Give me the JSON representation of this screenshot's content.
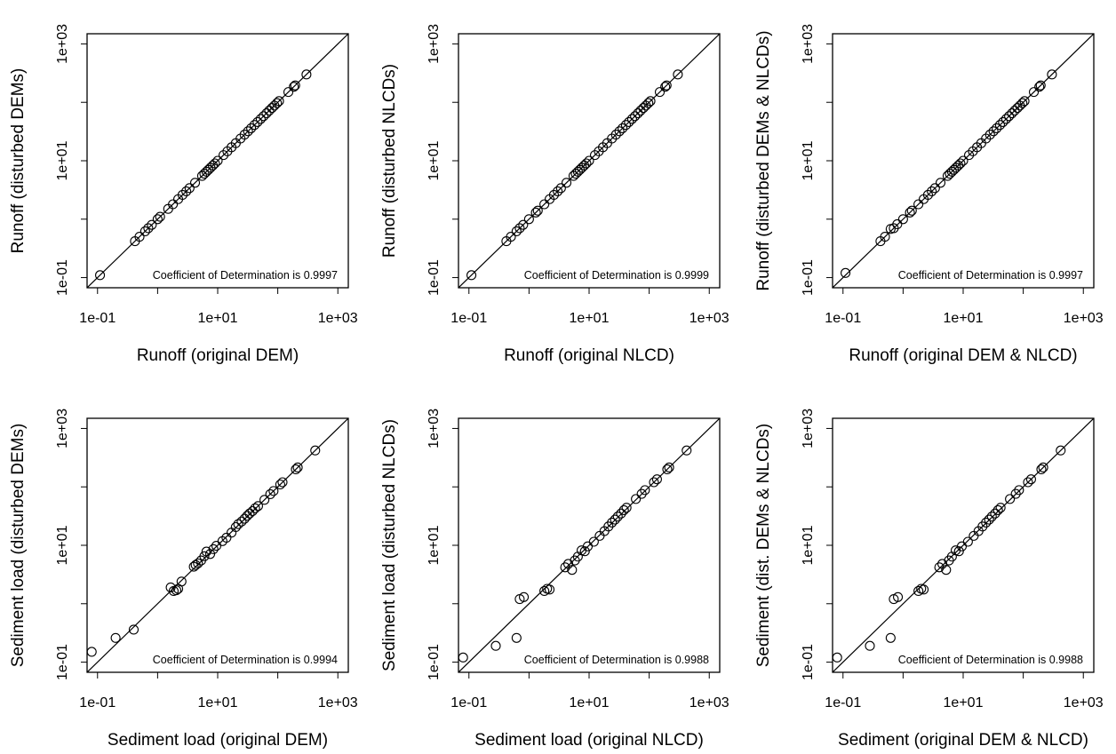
{
  "chart_data": [
    {
      "type": "scatter",
      "xlabel": "Runoff (original DEM)",
      "ylabel": "Runoff (disturbed DEMs)",
      "annotation": "Coefficient of Determination is 0.9997",
      "x_scale": "log",
      "y_scale": "log",
      "xlim": [
        0.1,
        1000
      ],
      "ylim": [
        0.1,
        1000
      ],
      "x_ticks": [
        "1e-01",
        "1e+01",
        "1e+03"
      ],
      "y_ticks": [
        "1e-01",
        "1e+01",
        "1e+03"
      ],
      "reference_line": "y = x",
      "points": [
        [
          0.11,
          0.11
        ],
        [
          0.42,
          0.42
        ],
        [
          0.5,
          0.5
        ],
        [
          0.62,
          0.62
        ],
        [
          0.7,
          0.7
        ],
        [
          0.8,
          0.8
        ],
        [
          1.0,
          1.0
        ],
        [
          1.1,
          1.1
        ],
        [
          1.5,
          1.5
        ],
        [
          1.8,
          1.8
        ],
        [
          2.2,
          2.2
        ],
        [
          2.6,
          2.6
        ],
        [
          3.0,
          3.0
        ],
        [
          3.4,
          3.4
        ],
        [
          4.2,
          4.2
        ],
        [
          5.5,
          5.5
        ],
        [
          6.0,
          6.0
        ],
        [
          6.5,
          6.5
        ],
        [
          7.0,
          7.0
        ],
        [
          7.6,
          7.6
        ],
        [
          8.3,
          8.3
        ],
        [
          9.0,
          9.0
        ],
        [
          10.0,
          10.0
        ],
        [
          12.5,
          12.5
        ],
        [
          14.5,
          14.5
        ],
        [
          17.0,
          17.0
        ],
        [
          20.0,
          20.0
        ],
        [
          24.0,
          24.0
        ],
        [
          28.0,
          28.0
        ],
        [
          32.0,
          32.0
        ],
        [
          36.0,
          36.0
        ],
        [
          41.0,
          41.0
        ],
        [
          46.0,
          46.0
        ],
        [
          52.0,
          52.0
        ],
        [
          58.0,
          58.0
        ],
        [
          65.0,
          65.0
        ],
        [
          72.0,
          72.0
        ],
        [
          80.0,
          80.0
        ],
        [
          88.0,
          88.0
        ],
        [
          97.0,
          97.0
        ],
        [
          105.0,
          105.0
        ],
        [
          150.0,
          150.0
        ],
        [
          185.0,
          185.0
        ],
        [
          195.0,
          195.0
        ],
        [
          300.0,
          300.0
        ]
      ]
    },
    {
      "type": "scatter",
      "xlabel": "Runoff (original NLCD)",
      "ylabel": "Runoff (disturbed NLCDs)",
      "annotation": "Coefficient of Determination is 0.9999",
      "x_scale": "log",
      "y_scale": "log",
      "xlim": [
        0.1,
        1000
      ],
      "ylim": [
        0.1,
        1000
      ],
      "x_ticks": [
        "1e-01",
        "1e+01",
        "1e+03"
      ],
      "y_ticks": [
        "1e-01",
        "1e+01",
        "1e+03"
      ],
      "reference_line": "y = x",
      "points": [
        [
          0.11,
          0.11
        ],
        [
          0.42,
          0.42
        ],
        [
          0.5,
          0.5
        ],
        [
          0.62,
          0.62
        ],
        [
          0.7,
          0.7
        ],
        [
          0.8,
          0.8
        ],
        [
          1.0,
          1.0
        ],
        [
          1.3,
          1.3
        ],
        [
          1.4,
          1.4
        ],
        [
          1.8,
          1.8
        ],
        [
          2.2,
          2.2
        ],
        [
          2.6,
          2.6
        ],
        [
          3.0,
          3.0
        ],
        [
          3.4,
          3.4
        ],
        [
          4.2,
          4.2
        ],
        [
          5.5,
          5.5
        ],
        [
          6.0,
          6.0
        ],
        [
          6.5,
          6.5
        ],
        [
          7.0,
          7.0
        ],
        [
          7.6,
          7.6
        ],
        [
          8.3,
          8.3
        ],
        [
          9.0,
          9.0
        ],
        [
          10.0,
          10.0
        ],
        [
          12.5,
          12.5
        ],
        [
          14.5,
          14.5
        ],
        [
          17.0,
          17.0
        ],
        [
          20.0,
          20.0
        ],
        [
          24.0,
          24.0
        ],
        [
          28.0,
          28.0
        ],
        [
          32.0,
          32.0
        ],
        [
          36.0,
          36.0
        ],
        [
          41.0,
          41.0
        ],
        [
          46.0,
          46.0
        ],
        [
          52.0,
          52.0
        ],
        [
          58.0,
          58.0
        ],
        [
          65.0,
          65.0
        ],
        [
          72.0,
          72.0
        ],
        [
          80.0,
          80.0
        ],
        [
          88.0,
          88.0
        ],
        [
          97.0,
          97.0
        ],
        [
          105.0,
          105.0
        ],
        [
          150.0,
          150.0
        ],
        [
          185.0,
          185.0
        ],
        [
          195.0,
          195.0
        ],
        [
          300.0,
          300.0
        ]
      ]
    },
    {
      "type": "scatter",
      "xlabel": "Runoff (original DEM & NLCD)",
      "ylabel": "Runoff (disturbed DEMs & NLCDs)",
      "annotation": "Coefficient of Determination is 0.9997",
      "x_scale": "log",
      "y_scale": "log",
      "xlim": [
        0.1,
        1000
      ],
      "ylim": [
        0.1,
        1000
      ],
      "x_ticks": [
        "1e-01",
        "1e+01",
        "1e+03"
      ],
      "y_ticks": [
        "1e-01",
        "1e+01",
        "1e+03"
      ],
      "reference_line": "y = x",
      "points": [
        [
          0.11,
          0.12
        ],
        [
          0.42,
          0.42
        ],
        [
          0.5,
          0.5
        ],
        [
          0.62,
          0.68
        ],
        [
          0.7,
          0.7
        ],
        [
          0.8,
          0.82
        ],
        [
          1.0,
          1.0
        ],
        [
          1.3,
          1.3
        ],
        [
          1.4,
          1.4
        ],
        [
          1.8,
          1.8
        ],
        [
          2.2,
          2.2
        ],
        [
          2.6,
          2.6
        ],
        [
          3.0,
          3.0
        ],
        [
          3.4,
          3.4
        ],
        [
          4.2,
          4.2
        ],
        [
          5.5,
          5.5
        ],
        [
          6.0,
          6.0
        ],
        [
          6.5,
          6.5
        ],
        [
          7.0,
          7.0
        ],
        [
          7.6,
          7.6
        ],
        [
          8.3,
          8.3
        ],
        [
          9.0,
          9.0
        ],
        [
          10.0,
          10.0
        ],
        [
          12.5,
          12.5
        ],
        [
          14.5,
          14.5
        ],
        [
          17.0,
          17.0
        ],
        [
          20.0,
          20.0
        ],
        [
          24.0,
          24.0
        ],
        [
          28.0,
          28.0
        ],
        [
          32.0,
          32.0
        ],
        [
          36.0,
          36.0
        ],
        [
          41.0,
          41.0
        ],
        [
          46.0,
          46.0
        ],
        [
          52.0,
          52.0
        ],
        [
          58.0,
          58.0
        ],
        [
          65.0,
          65.0
        ],
        [
          72.0,
          72.0
        ],
        [
          80.0,
          80.0
        ],
        [
          88.0,
          88.0
        ],
        [
          97.0,
          97.0
        ],
        [
          105.0,
          105.0
        ],
        [
          150.0,
          150.0
        ],
        [
          185.0,
          185.0
        ],
        [
          195.0,
          195.0
        ],
        [
          300.0,
          300.0
        ]
      ]
    },
    {
      "type": "scatter",
      "xlabel": "Sediment load (original DEM)",
      "ylabel": "Sediment load (disturbed DEMs)",
      "annotation": "Coefficient of Determination is 0.9994",
      "x_scale": "log",
      "y_scale": "log",
      "xlim": [
        0.1,
        1000
      ],
      "ylim": [
        0.1,
        1000
      ],
      "x_ticks": [
        "1e-01",
        "1e+01",
        "1e+03"
      ],
      "y_ticks": [
        "1e-01",
        "1e+01",
        "1e+03"
      ],
      "reference_line": "y = x",
      "points": [
        [
          0.08,
          0.15
        ],
        [
          0.2,
          0.26
        ],
        [
          0.4,
          0.36
        ],
        [
          1.65,
          1.9
        ],
        [
          1.85,
          1.65
        ],
        [
          2.05,
          1.7
        ],
        [
          2.2,
          1.8
        ],
        [
          2.5,
          2.4
        ],
        [
          4.0,
          4.3
        ],
        [
          4.3,
          4.6
        ],
        [
          4.7,
          4.9
        ],
        [
          5.3,
          5.5
        ],
        [
          6.0,
          6.5
        ],
        [
          6.5,
          7.8
        ],
        [
          7.5,
          7.1
        ],
        [
          8.5,
          8.6
        ],
        [
          9.5,
          9.8
        ],
        [
          12.0,
          11.8
        ],
        [
          14.0,
          13.5
        ],
        [
          17.0,
          16.5
        ],
        [
          20.0,
          20.5
        ],
        [
          22.0,
          23.0
        ],
        [
          25.0,
          25.5
        ],
        [
          28.0,
          28.5
        ],
        [
          31.0,
          32.0
        ],
        [
          34.0,
          35.0
        ],
        [
          38.0,
          38.5
        ],
        [
          42.0,
          43.0
        ],
        [
          47.0,
          47.0
        ],
        [
          60.0,
          60.0
        ],
        [
          75.0,
          75.0
        ],
        [
          85.0,
          85.0
        ],
        [
          110.0,
          110.0
        ],
        [
          120.0,
          120.0
        ],
        [
          200.0,
          200.0
        ],
        [
          215.0,
          215.0
        ],
        [
          420.0,
          420.0
        ]
      ]
    },
    {
      "type": "scatter",
      "xlabel": "Sediment load (original NLCD)",
      "ylabel": "Sediment load (disturbed NLCDs)",
      "annotation": "Coefficient of Determination is 0.9988",
      "x_scale": "log",
      "y_scale": "log",
      "xlim": [
        0.1,
        1000
      ],
      "ylim": [
        0.1,
        1000
      ],
      "x_ticks": [
        "1e-01",
        "1e+01",
        "1e+03"
      ],
      "y_ticks": [
        "1e-01",
        "1e+01",
        "1e+03"
      ],
      "reference_line": "y = x",
      "points": [
        [
          0.08,
          0.12
        ],
        [
          0.28,
          0.19
        ],
        [
          0.62,
          0.26
        ],
        [
          0.7,
          1.2
        ],
        [
          0.82,
          1.3
        ],
        [
          1.8,
          1.65
        ],
        [
          2.0,
          1.8
        ],
        [
          2.2,
          1.75
        ],
        [
          4.0,
          4.2
        ],
        [
          4.5,
          4.8
        ],
        [
          5.2,
          3.8
        ],
        [
          5.8,
          5.5
        ],
        [
          6.5,
          6.4
        ],
        [
          7.5,
          8.2
        ],
        [
          8.5,
          7.9
        ],
        [
          9.5,
          9.6
        ],
        [
          12.0,
          11.5
        ],
        [
          15.0,
          14.5
        ],
        [
          18.0,
          17.5
        ],
        [
          21.0,
          21.0
        ],
        [
          24.0,
          24.5
        ],
        [
          27.0,
          27.5
        ],
        [
          30.0,
          31.0
        ],
        [
          34.0,
          35.0
        ],
        [
          38.0,
          40.0
        ],
        [
          42.0,
          44.0
        ],
        [
          60.0,
          62.0
        ],
        [
          75.0,
          76.0
        ],
        [
          85.0,
          88.0
        ],
        [
          120.0,
          120.0
        ],
        [
          135.0,
          135.0
        ],
        [
          200.0,
          200.0
        ],
        [
          215.0,
          215.0
        ],
        [
          420.0,
          420.0
        ]
      ]
    },
    {
      "type": "scatter",
      "xlabel": "Sediment (original DEM & NLCD)",
      "ylabel": "Sediment (dist. DEMs & NLCDs)",
      "annotation": "Coefficient of Determination is 0.9988",
      "x_scale": "log",
      "y_scale": "log",
      "xlim": [
        0.1,
        1000
      ],
      "ylim": [
        0.1,
        1000
      ],
      "x_ticks": [
        "1e-01",
        "1e+01",
        "1e+03"
      ],
      "y_ticks": [
        "1e-01",
        "1e+01",
        "1e+03"
      ],
      "reference_line": "y = x",
      "points": [
        [
          0.08,
          0.12
        ],
        [
          0.28,
          0.19
        ],
        [
          0.62,
          0.26
        ],
        [
          0.7,
          1.2
        ],
        [
          0.82,
          1.3
        ],
        [
          1.8,
          1.65
        ],
        [
          2.0,
          1.8
        ],
        [
          2.2,
          1.75
        ],
        [
          4.0,
          4.2
        ],
        [
          4.5,
          4.8
        ],
        [
          5.2,
          3.8
        ],
        [
          5.8,
          5.5
        ],
        [
          6.5,
          6.4
        ],
        [
          7.5,
          8.2
        ],
        [
          8.5,
          7.9
        ],
        [
          9.5,
          9.6
        ],
        [
          12.0,
          11.5
        ],
        [
          15.0,
          14.5
        ],
        [
          18.0,
          17.5
        ],
        [
          21.0,
          21.0
        ],
        [
          24.0,
          24.5
        ],
        [
          27.0,
          27.5
        ],
        [
          30.0,
          31.0
        ],
        [
          34.0,
          35.0
        ],
        [
          38.0,
          40.0
        ],
        [
          42.0,
          44.0
        ],
        [
          60.0,
          62.0
        ],
        [
          75.0,
          76.0
        ],
        [
          85.0,
          88.0
        ],
        [
          120.0,
          120.0
        ],
        [
          135.0,
          135.0
        ],
        [
          200.0,
          200.0
        ],
        [
          215.0,
          215.0
        ],
        [
          420.0,
          420.0
        ]
      ]
    }
  ]
}
